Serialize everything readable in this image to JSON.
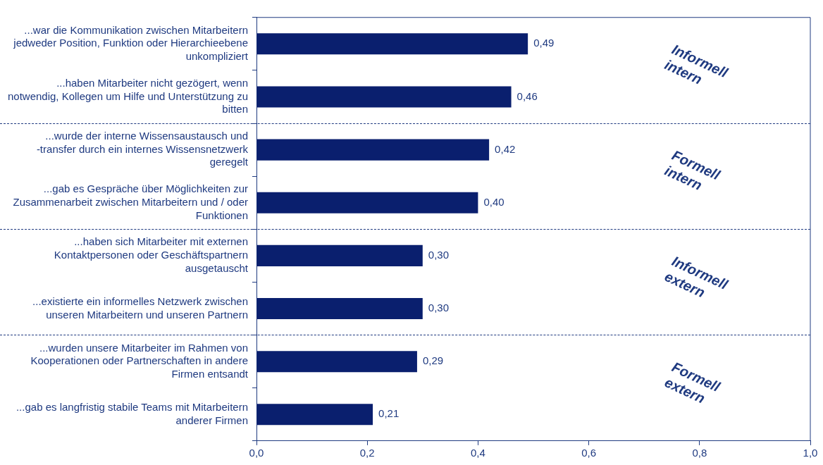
{
  "chart_data": {
    "type": "bar",
    "orientation": "horizontal",
    "legend": false,
    "grid": false,
    "categories": [
      "...war die Kommunikation zwischen Mitarbeitern jedweder Position, Funktion oder Hierarchieebene unkompliziert",
      "...haben Mitarbeiter nicht gezögert, wenn notwendig, Kollegen um Hilfe und Unterstützung zu bitten",
      "...wurde der interne Wissensaustausch und -transfer durch ein internes Wissensnetzwerk geregelt",
      "...gab es Gespräche über Möglichkeiten zur Zusammenarbeit zwischen Mitarbeitern und / oder Funktionen",
      "...haben sich Mitarbeiter mit externen Kontaktpersonen oder Geschäftspartnern ausgetauscht",
      "...existierte ein informelles Netzwerk zwischen unseren Mitarbeitern und unseren Partnern",
      "...wurden unsere Mitarbeiter im Rahmen von Kooperationen oder Partnerschaften in andere Firmen entsandt",
      "...gab es langfristig stabile Teams mit Mitarbeitern anderer Firmen"
    ],
    "values": [
      0.49,
      0.46,
      0.42,
      0.4,
      0.3,
      0.3,
      0.29,
      0.21
    ],
    "value_labels": [
      "0,49",
      "0,46",
      "0,42",
      "0,40",
      "0,30",
      "0,30",
      "0,29",
      "0,21"
    ],
    "color": "#0a1f6e",
    "xlim": [
      0,
      1
    ],
    "xticks": [
      {
        "value": 0,
        "label": "0,0"
      },
      {
        "value": 0.2,
        "label": "0,2"
      },
      {
        "value": 0.4,
        "label": "0,4"
      },
      {
        "value": 0.6,
        "label": "0,6"
      },
      {
        "value": 0.8,
        "label": "0,8"
      },
      {
        "value": 1,
        "label": "1,0"
      }
    ],
    "annotations": [
      "Informell intern",
      "Formell intern",
      "Informell extern",
      "Formell extern"
    ]
  }
}
